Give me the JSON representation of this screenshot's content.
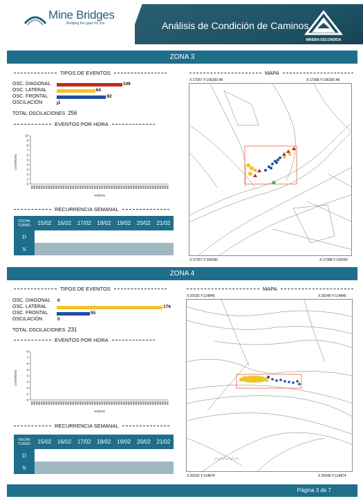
{
  "header": {
    "logo_text": "Mine Bridges",
    "logo_sub": "Bridging the gaps for you",
    "title": "Análisis de Condición de Caminos",
    "brand": "MINERA ESCONDIDA"
  },
  "labels": {
    "tipos": "TIPOS DE EVENTOS",
    "mapa": "MAPA",
    "eventos_hora": "EVENTOS POR HORA",
    "recurrencia": "RECURRENCIA SEMANAL",
    "cantidad": "CANTIDAD",
    "horas": "HORAS",
    "fecha": "FECHA",
    "turno": "TURNO",
    "total_prefix": "TOTAL OSCILACIONES",
    "ev_diagonal": "OSC. DIAGONAL",
    "ev_lateral": "OSC. LATERAL",
    "ev_frontal": "OSC. FRONTAL",
    "ev_oscilacion": "OSCILACIÓN"
  },
  "colors": {
    "diagonal": "#c8281e",
    "lateral": "#f0c52a",
    "frontal": "#1f4fa0",
    "oscilacion": "#3aa84b",
    "accent": "#1f6e8b"
  },
  "dates": [
    "15/02",
    "16/02",
    "17/02",
    "18/02",
    "19/02",
    "20/02",
    "21/02"
  ],
  "shifts": [
    "D",
    "N"
  ],
  "zones": [
    {
      "title": "ZONA 3",
      "events": {
        "diagonal": 109,
        "lateral": 64,
        "frontal": 82,
        "oscilacion": 1
      },
      "total": "256",
      "map": {
        "tl": "X:17267 Y:106200.48",
        "tr": "X:17388 Y:106200.48",
        "bl": "X:17267 Y:106290",
        "br": "X:17388 Y:106290"
      }
    },
    {
      "title": "ZONA 4",
      "events": {
        "diagonal": 0,
        "lateral": 176,
        "frontal": 55,
        "oscilacion": 0
      },
      "total": "231",
      "map": {
        "tl": "X:20182 Y:114845",
        "tr": "X:20340 Y:114845",
        "bl": "X:20182 Y:114874",
        "br": "X:20340 Y:114874"
      }
    }
  ],
  "chart_data": [
    {
      "type": "bar",
      "title": "EVENTOS POR HORA",
      "xlabel": "HORAS",
      "ylabel": "CANTIDAD",
      "ylim": [
        0,
        10
      ],
      "yticks": [
        0,
        1,
        2,
        3,
        4,
        5,
        6,
        7,
        8,
        9,
        10
      ]
    },
    {
      "type": "bar",
      "title": "EVENTOS POR HORA",
      "xlabel": "HORAS",
      "ylabel": "CANTIDAD",
      "ylim": [
        0,
        8
      ],
      "yticks": [
        0,
        1,
        2,
        3,
        4,
        5,
        6,
        7,
        8
      ]
    }
  ],
  "footer": {
    "page": "Página 3 de 7"
  }
}
